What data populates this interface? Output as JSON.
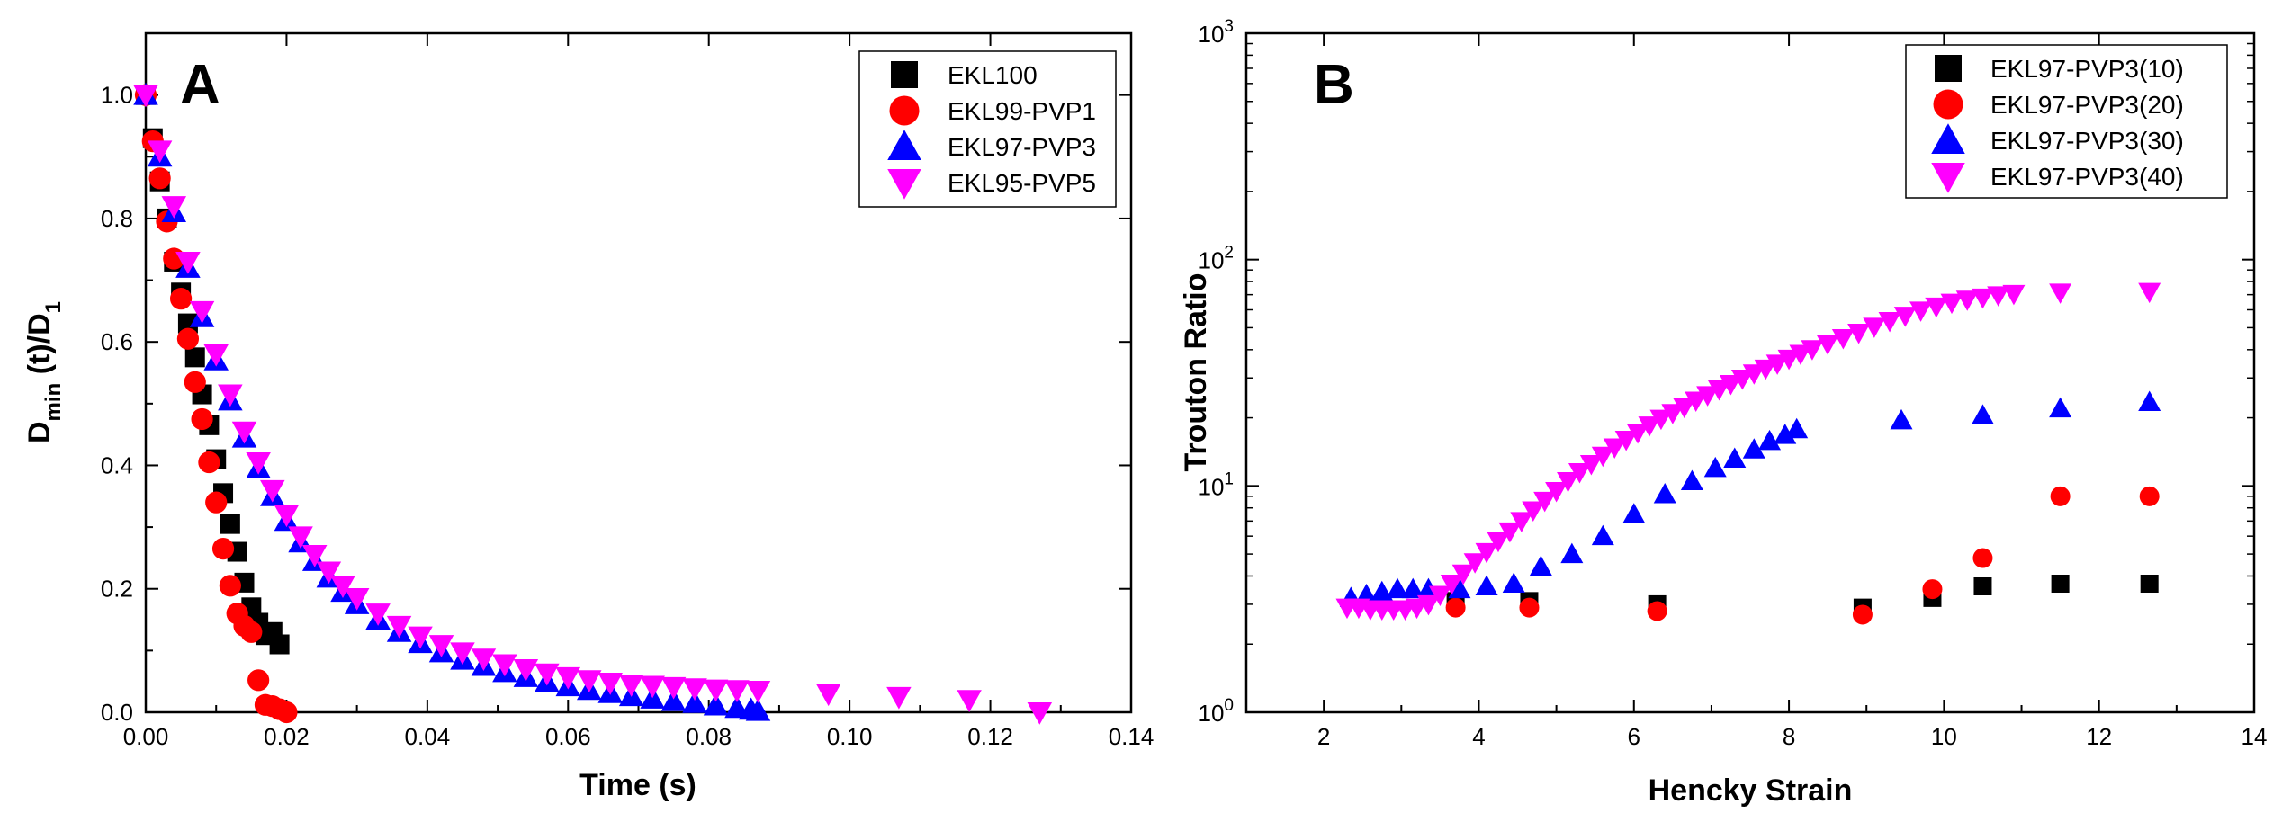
{
  "chart_data": [
    {
      "type": "scatter",
      "panel_label": "A",
      "title": "",
      "xlabel": "Time (s)",
      "ylabel": {
        "main": "D",
        "sub": "min",
        "mid": " (t)/D",
        "sub2": "1"
      },
      "xlim": [
        0.0,
        0.14
      ],
      "ylim": [
        0.0,
        1.1
      ],
      "x_ticks": [
        0.0,
        0.02,
        0.04,
        0.06,
        0.08,
        0.1,
        0.12,
        0.14
      ],
      "x_tick_labels": [
        "0.00",
        "0.02",
        "0.04",
        "0.06",
        "0.08",
        "0.10",
        "0.12",
        "0.14"
      ],
      "y_ticks": [
        0.0,
        0.2,
        0.4,
        0.6,
        0.8,
        1.0
      ],
      "y_tick_labels": [
        "0.0",
        "0.2",
        "0.4",
        "0.6",
        "0.8",
        "1.0"
      ],
      "legend_position": "top-right",
      "series": [
        {
          "name": "EKL100",
          "marker": "square",
          "color": "#000000",
          "x": [
            0.0,
            0.001,
            0.002,
            0.003,
            0.004,
            0.005,
            0.006,
            0.007,
            0.008,
            0.009,
            0.01,
            0.011,
            0.012,
            0.013,
            0.014,
            0.015,
            0.016,
            0.017,
            0.018,
            0.019
          ],
          "y": [
            1.0,
            0.93,
            0.86,
            0.8,
            0.73,
            0.68,
            0.63,
            0.575,
            0.515,
            0.465,
            0.41,
            0.355,
            0.305,
            0.26,
            0.21,
            0.17,
            0.145,
            0.125,
            0.13,
            0.11
          ]
        },
        {
          "name": "EKL99-PVP1",
          "marker": "circle",
          "color": "#ff0000",
          "x": [
            0.0,
            0.001,
            0.002,
            0.003,
            0.004,
            0.005,
            0.006,
            0.007,
            0.008,
            0.009,
            0.01,
            0.011,
            0.012,
            0.013,
            0.014,
            0.015,
            0.016,
            0.017,
            0.018,
            0.019,
            0.02
          ],
          "y": [
            1.0,
            0.925,
            0.865,
            0.795,
            0.735,
            0.67,
            0.605,
            0.535,
            0.475,
            0.405,
            0.34,
            0.265,
            0.205,
            0.16,
            0.14,
            0.13,
            0.052,
            0.012,
            0.01,
            0.005,
            0.0
          ]
        },
        {
          "name": "EKL97-PVP3",
          "marker": "triangle-up",
          "color": "#0000ff",
          "x": [
            0.0,
            0.002,
            0.004,
            0.006,
            0.008,
            0.01,
            0.012,
            0.014,
            0.016,
            0.018,
            0.02,
            0.022,
            0.024,
            0.026,
            0.028,
            0.03,
            0.033,
            0.036,
            0.039,
            0.042,
            0.045,
            0.048,
            0.051,
            0.054,
            0.057,
            0.06,
            0.063,
            0.066,
            0.069,
            0.072,
            0.075,
            0.078,
            0.081,
            0.084,
            0.086,
            0.087
          ],
          "y": [
            1.0,
            0.9,
            0.81,
            0.72,
            0.64,
            0.57,
            0.505,
            0.445,
            0.395,
            0.35,
            0.31,
            0.275,
            0.245,
            0.218,
            0.195,
            0.175,
            0.15,
            0.13,
            0.112,
            0.097,
            0.085,
            0.075,
            0.065,
            0.057,
            0.049,
            0.042,
            0.036,
            0.031,
            0.026,
            0.022,
            0.018,
            0.015,
            0.011,
            0.007,
            0.004,
            0.002
          ]
        },
        {
          "name": "EKL95-PVP5",
          "marker": "triangle-down",
          "color": "#ff00ff",
          "x": [
            0.0,
            0.002,
            0.004,
            0.006,
            0.008,
            0.01,
            0.012,
            0.014,
            0.016,
            0.018,
            0.02,
            0.022,
            0.024,
            0.026,
            0.028,
            0.03,
            0.033,
            0.036,
            0.039,
            0.042,
            0.045,
            0.048,
            0.051,
            0.054,
            0.057,
            0.06,
            0.063,
            0.066,
            0.069,
            0.072,
            0.075,
            0.078,
            0.081,
            0.084,
            0.087,
            0.097,
            0.107,
            0.117,
            0.127
          ],
          "y": [
            1.0,
            0.91,
            0.82,
            0.73,
            0.65,
            0.58,
            0.515,
            0.455,
            0.405,
            0.36,
            0.32,
            0.285,
            0.255,
            0.228,
            0.205,
            0.185,
            0.16,
            0.14,
            0.123,
            0.109,
            0.097,
            0.087,
            0.078,
            0.07,
            0.063,
            0.057,
            0.052,
            0.048,
            0.045,
            0.043,
            0.041,
            0.039,
            0.037,
            0.036,
            0.035,
            0.03,
            0.025,
            0.02,
            0.0
          ]
        }
      ]
    },
    {
      "type": "scatter",
      "panel_label": "B",
      "title": "",
      "xlabel": "Hencky Strain",
      "ylabel": "Trouton Ratio",
      "xlim": [
        1,
        14
      ],
      "ylim": [
        1,
        1000
      ],
      "y_scale": "log",
      "x_ticks": [
        2,
        4,
        6,
        8,
        10,
        12,
        14
      ],
      "x_tick_labels": [
        "2",
        "4",
        "6",
        "8",
        "10",
        "12",
        "14"
      ],
      "y_ticks": [
        1,
        10,
        100,
        1000
      ],
      "y_tick_labels": [
        {
          "base": "10",
          "exp": "0"
        },
        {
          "base": "10",
          "exp": "1"
        },
        {
          "base": "10",
          "exp": "2"
        },
        {
          "base": "10",
          "exp": "3"
        }
      ],
      "legend_position": "top-right",
      "series": [
        {
          "name": "EKL97-PVP3(10)",
          "marker": "square",
          "color": "#000000",
          "x": [
            3.7,
            4.65,
            6.3,
            8.95,
            9.85,
            10.5,
            11.5,
            12.65
          ],
          "y": [
            3.1,
            3.1,
            3.0,
            2.9,
            3.2,
            3.6,
            3.7,
            3.7
          ]
        },
        {
          "name": "EKL97-PVP3(20)",
          "marker": "circle",
          "color": "#ff0000",
          "x": [
            3.7,
            4.65,
            6.3,
            8.95,
            9.85,
            10.5,
            11.5,
            12.65
          ],
          "y": [
            2.9,
            2.9,
            2.8,
            2.7,
            3.5,
            4.8,
            9.0,
            9.0
          ]
        },
        {
          "name": "EKL97-PVP3(30)",
          "marker": "triangle-up",
          "color": "#0000ff",
          "x": [
            2.35,
            2.55,
            2.75,
            2.95,
            3.15,
            3.35,
            3.75,
            4.1,
            4.45,
            4.8,
            5.2,
            5.6,
            6.0,
            6.4,
            6.75,
            7.05,
            7.3,
            7.55,
            7.75,
            7.95,
            8.1,
            9.45,
            10.5,
            11.5,
            12.65
          ],
          "y": [
            3.2,
            3.3,
            3.4,
            3.5,
            3.5,
            3.5,
            3.5,
            3.6,
            3.7,
            4.4,
            5.0,
            6.0,
            7.5,
            9.2,
            10.5,
            12.0,
            13.2,
            14.5,
            15.8,
            16.8,
            17.8,
            19.5,
            20.5,
            22.0,
            23.5
          ]
        },
        {
          "name": "EKL97-PVP3(40)",
          "marker": "triangle-down",
          "color": "#ff00ff",
          "x": [
            2.3,
            2.45,
            2.6,
            2.75,
            2.9,
            3.05,
            3.2,
            3.35,
            3.5,
            3.65,
            3.8,
            3.95,
            4.1,
            4.25,
            4.4,
            4.55,
            4.7,
            4.85,
            5.0,
            5.15,
            5.3,
            5.45,
            5.6,
            5.75,
            5.9,
            6.05,
            6.2,
            6.35,
            6.5,
            6.65,
            6.8,
            6.95,
            7.1,
            7.25,
            7.4,
            7.55,
            7.7,
            7.85,
            8.0,
            8.15,
            8.3,
            8.5,
            8.7,
            8.9,
            9.1,
            9.3,
            9.5,
            9.7,
            9.9,
            10.1,
            10.3,
            10.5,
            10.7,
            10.9,
            11.5,
            12.65
          ],
          "y": [
            2.9,
            2.9,
            2.85,
            2.85,
            2.85,
            2.85,
            2.9,
            3.0,
            3.3,
            3.7,
            4.1,
            4.6,
            5.1,
            5.7,
            6.3,
            7.0,
            7.8,
            8.6,
            9.5,
            10.5,
            11.5,
            12.5,
            13.6,
            14.8,
            16.0,
            17.2,
            18.5,
            19.8,
            21.0,
            22.3,
            23.8,
            25.2,
            26.7,
            28.2,
            29.8,
            31.4,
            33.0,
            34.7,
            36.5,
            38.3,
            40.2,
            42.5,
            45.0,
            47.5,
            50.5,
            53.5,
            56.5,
            59.5,
            62.0,
            64.5,
            66.5,
            68.0,
            69.5,
            70.5,
            71.5,
            72.0
          ]
        }
      ]
    }
  ]
}
